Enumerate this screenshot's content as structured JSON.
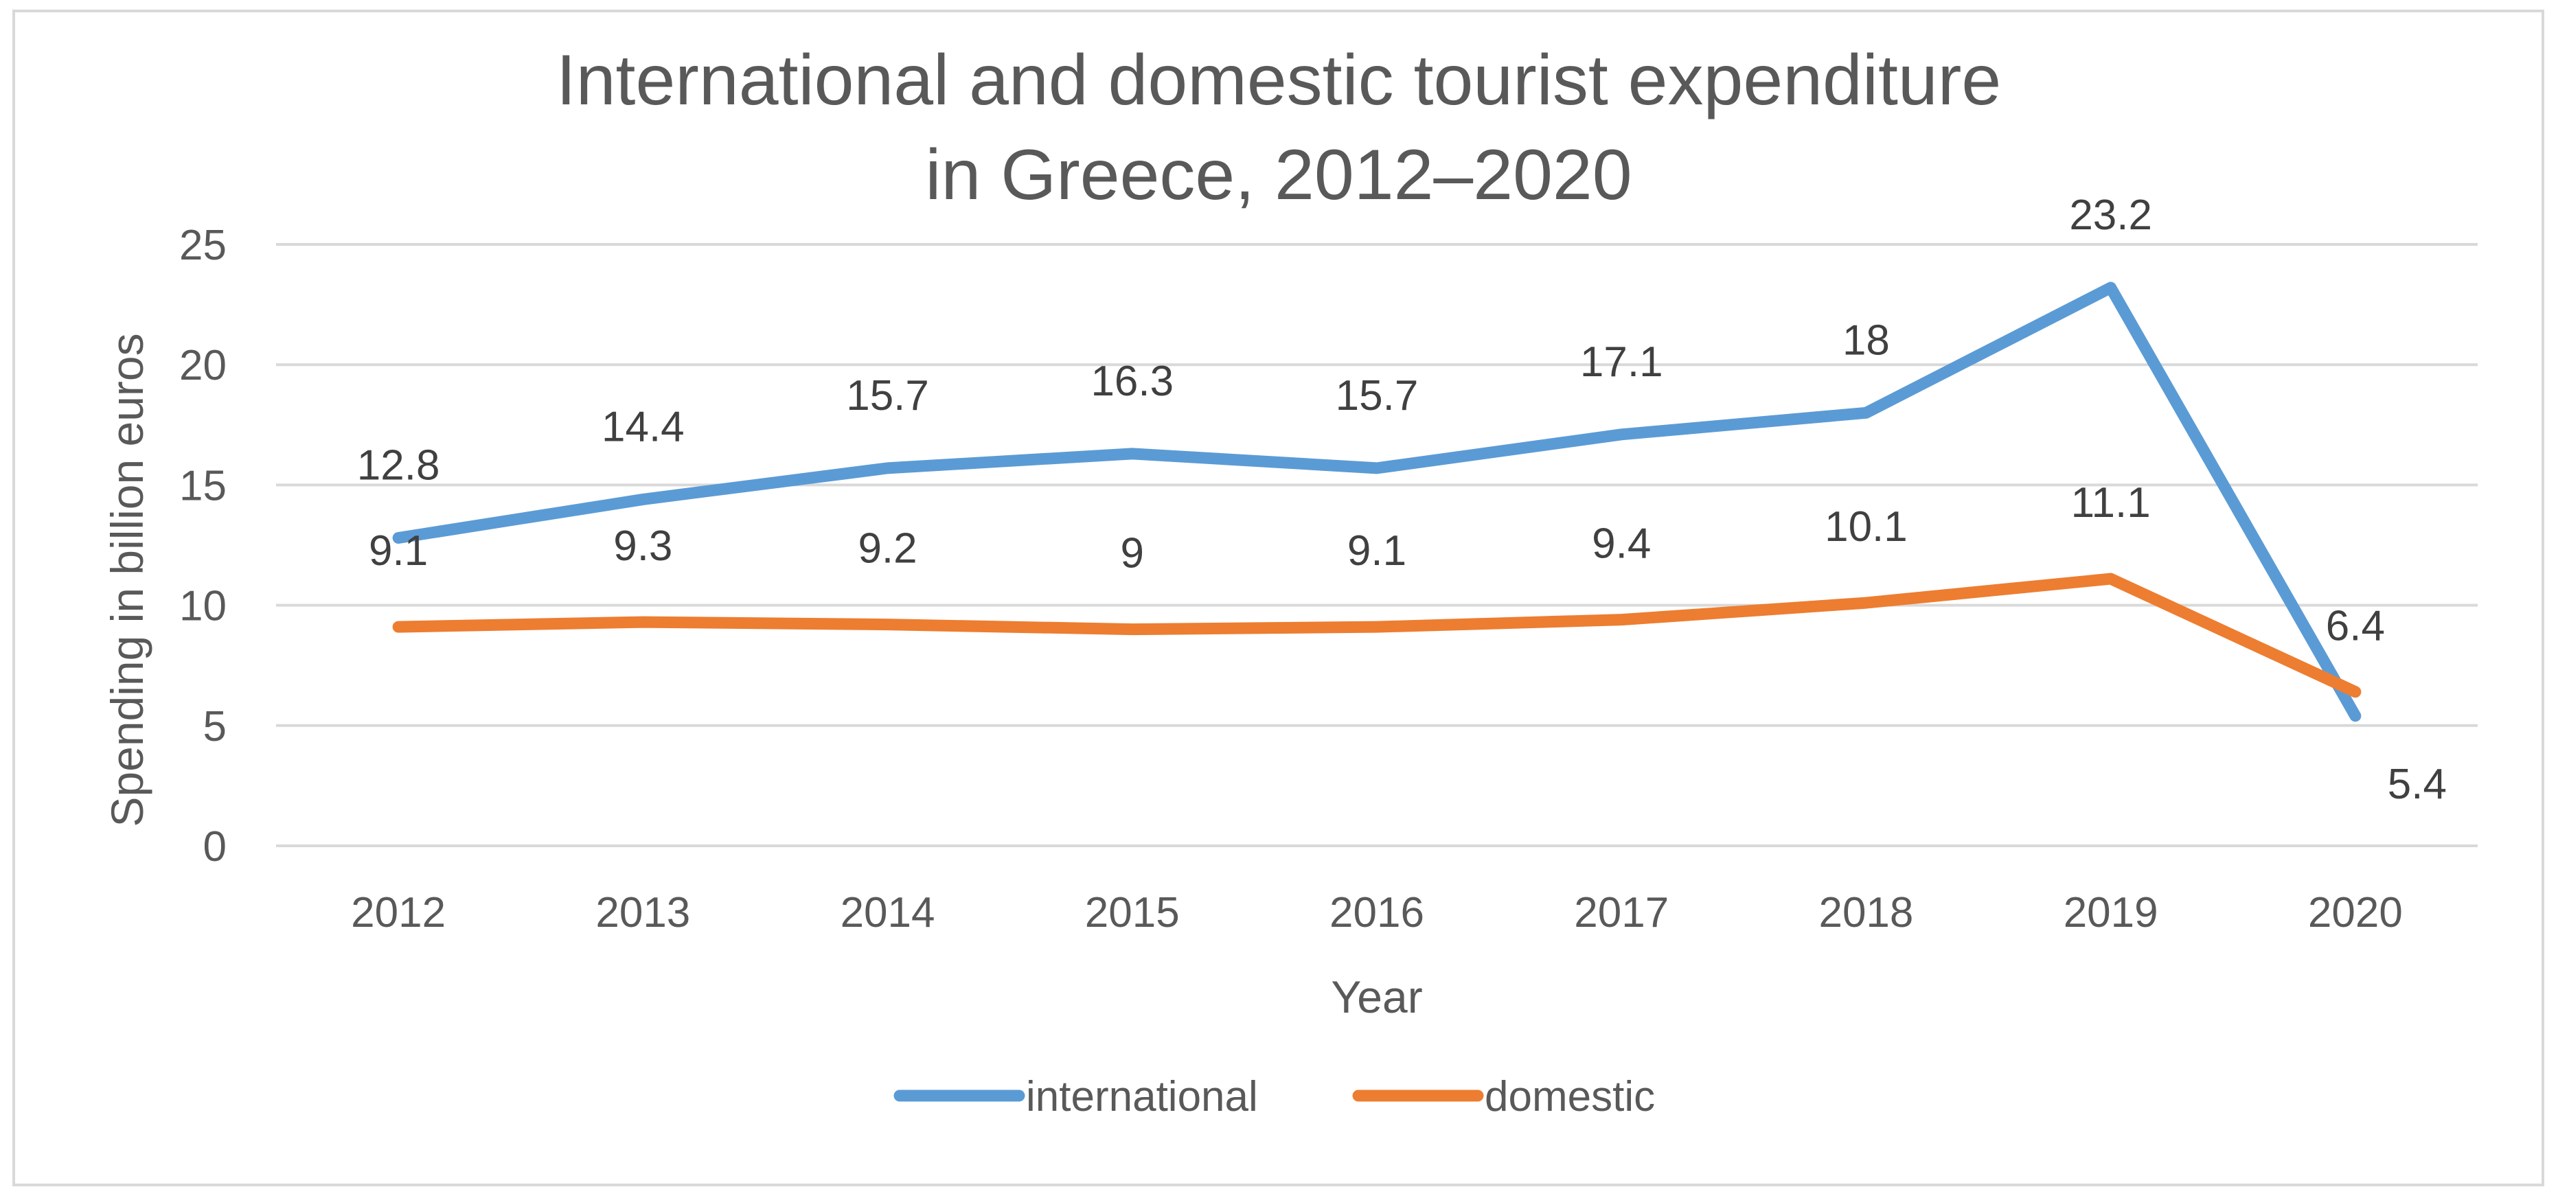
{
  "chart_data": {
    "type": "line",
    "title": "International and domestic tourist expenditure in Greece, 2012–2020",
    "title_lines": [
      "International and domestic tourist expenditure",
      "in Greece, 2012–2020"
    ],
    "xlabel": "Year",
    "ylabel": "Spending in billion euros",
    "categories": [
      "2012",
      "2013",
      "2014",
      "2015",
      "2016",
      "2017",
      "2018",
      "2019",
      "2020"
    ],
    "ylim": [
      0,
      25
    ],
    "yticks": [
      0,
      5,
      10,
      15,
      20,
      25
    ],
    "grid": true,
    "legend_position": "bottom",
    "series": [
      {
        "name": "international",
        "color": "#5b9bd5",
        "values": [
          12.8,
          14.4,
          15.7,
          16.3,
          15.7,
          17.1,
          18,
          23.2,
          5.4
        ]
      },
      {
        "name": "domestic",
        "color": "#ed7d31",
        "values": [
          9.1,
          9.3,
          9.2,
          9,
          9.1,
          9.4,
          10.1,
          11.1,
          6.4
        ]
      }
    ]
  }
}
